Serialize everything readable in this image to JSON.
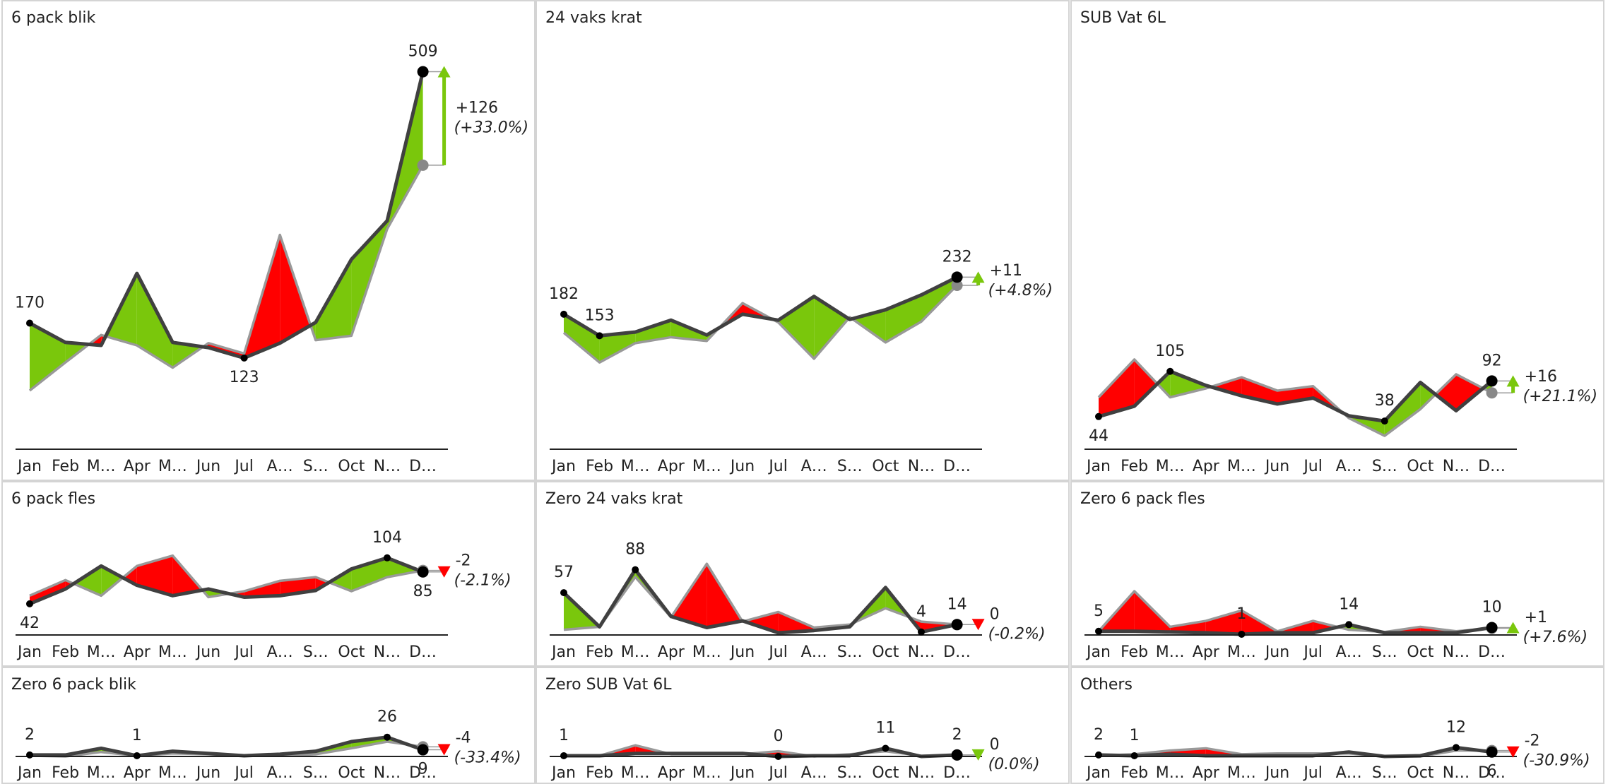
{
  "chart_data": [
    {
      "type": "variance-line",
      "title": "6 pack blik",
      "categories": [
        "Jan",
        "Feb",
        "M…",
        "Apr",
        "M…",
        "Jun",
        "Jul",
        "A…",
        "S…",
        "Oct",
        "N…",
        "D…"
      ],
      "series": [
        {
          "color": "#404040",
          "values": [
            170,
            144,
            140,
            237,
            144,
            137,
            123,
            143,
            171,
            256,
            308,
            509
          ],
          "value_labels": [
            "170",
            null,
            null,
            null,
            null,
            null,
            "123",
            null,
            null,
            null,
            null,
            "509"
          ]
        },
        {
          "color": "#999999",
          "values": [
            79,
            117,
            154,
            140,
            110,
            143,
            129,
            289,
            147,
            153,
            297,
            383
          ]
        }
      ],
      "delta": {
        "value": 126,
        "label": "+126"
      },
      "delta_pct": {
        "value": 33.0,
        "label": "(+33.0%)"
      }
    },
    {
      "type": "variance-line",
      "title": "24 vaks krat",
      "categories": [
        "Jan",
        "Feb",
        "M…",
        "Apr",
        "M…",
        "Jun",
        "Jul",
        "A…",
        "S…",
        "Oct",
        "N…",
        "D…"
      ],
      "series": [
        {
          "color": "#404040",
          "values": [
            182,
            153,
            158,
            174,
            154,
            182,
            174,
            206,
            175,
            188,
            208,
            232
          ],
          "value_labels": [
            "182",
            "153",
            null,
            null,
            null,
            null,
            null,
            null,
            null,
            null,
            null,
            "232"
          ]
        },
        {
          "color": "#999999",
          "values": [
            157,
            117,
            143,
            151,
            146,
            197,
            171,
            122,
            178,
            144,
            172,
            221
          ]
        }
      ],
      "delta": {
        "value": 11,
        "label": "+11"
      },
      "delta_pct": {
        "value": 4.8,
        "label": "(+4.8%)"
      }
    },
    {
      "type": "variance-line",
      "title": "SUB Vat 6L",
      "categories": [
        "Jan",
        "Feb",
        "M…",
        "Apr",
        "M…",
        "Jun",
        "Jul",
        "A…",
        "S…",
        "Oct",
        "N…",
        "D…"
      ],
      "series": [
        {
          "color": "#404040",
          "values": [
            44,
            58,
            105,
            86,
            72,
            61,
            69,
            45,
            38,
            90,
            52,
            92
          ],
          "value_labels": [
            "44",
            null,
            "105",
            null,
            null,
            null,
            null,
            null,
            "38",
            null,
            null,
            "92"
          ]
        },
        {
          "color": "#999999",
          "values": [
            70,
            121,
            70,
            82,
            97,
            79,
            85,
            42,
            18,
            54,
            101,
            76
          ]
        }
      ],
      "delta": {
        "value": 16,
        "label": "+16"
      },
      "delta_pct": {
        "value": 21.1,
        "label": "(+21.1%)"
      }
    },
    {
      "type": "variance-line",
      "title": "6 pack fles",
      "categories": [
        "Jan",
        "Feb",
        "M…",
        "Apr",
        "M…",
        "Jun",
        "Jul",
        "A…",
        "S…",
        "Oct",
        "N…",
        "D…"
      ],
      "series": [
        {
          "color": "#404040",
          "values": [
            42,
            62,
            93,
            67,
            53,
            62,
            51,
            53,
            60,
            89,
            104,
            85
          ],
          "value_labels": [
            "42",
            null,
            null,
            null,
            null,
            null,
            null,
            null,
            null,
            null,
            "104",
            "85"
          ]
        },
        {
          "color": "#999999",
          "values": [
            53,
            74,
            53,
            93,
            107,
            51,
            59,
            73,
            78,
            59,
            78,
            87
          ]
        }
      ],
      "delta": {
        "value": -2,
        "label": "-2"
      },
      "delta_pct": {
        "value": -2.1,
        "label": "(-2.1%)"
      }
    },
    {
      "type": "variance-line",
      "title": "Zero 24 vaks krat",
      "categories": [
        "Jan",
        "Feb",
        "M…",
        "Apr",
        "M…",
        "Jun",
        "Jul",
        "A…",
        "S…",
        "Oct",
        "N…",
        "D…"
      ],
      "series": [
        {
          "color": "#404040",
          "values": [
            57,
            11,
            88,
            25,
            10,
            19,
            3,
            6,
            11,
            64,
            4,
            14
          ],
          "value_labels": [
            "57",
            null,
            "88",
            null,
            null,
            null,
            null,
            null,
            null,
            null,
            "4",
            "14"
          ]
        },
        {
          "color": "#999999",
          "values": [
            7,
            11,
            78,
            24,
            96,
            18,
            31,
            10,
            14,
            36,
            18,
            14
          ]
        }
      ],
      "delta": {
        "value": 0,
        "label": "0"
      },
      "delta_pct": {
        "value": -0.2,
        "label": "(-0.2%)"
      }
    },
    {
      "type": "variance-line",
      "title": "Zero 6 pack fles",
      "categories": [
        "Jan",
        "Feb",
        "M…",
        "Apr",
        "M…",
        "Jun",
        "Jul",
        "A…",
        "S…",
        "Oct",
        "N…",
        "D…"
      ],
      "series": [
        {
          "color": "#404040",
          "values": [
            5,
            5,
            4,
            3,
            1,
            3,
            3,
            14,
            3,
            3,
            3,
            10
          ],
          "value_labels": [
            "5",
            null,
            null,
            null,
            "1",
            null,
            null,
            "14",
            null,
            null,
            null,
            "10"
          ]
        },
        {
          "color": "#999999",
          "values": [
            5,
            59,
            11,
            19,
            33,
            5,
            19,
            7,
            4,
            11,
            5,
            9
          ]
        }
      ],
      "delta": {
        "value": 1,
        "label": "+1"
      },
      "delta_pct": {
        "value": 7.6,
        "label": "(+7.6%)"
      }
    },
    {
      "type": "variance-line",
      "title": "Zero 6 pack blik",
      "categories": [
        "Jan",
        "Feb",
        "M…",
        "Apr",
        "M…",
        "Jun",
        "Jul",
        "A…",
        "S…",
        "Oct",
        "N…",
        "D…"
      ],
      "series": [
        {
          "color": "#404040",
          "values": [
            2,
            2,
            11,
            1,
            7,
            4,
            1,
            3,
            7,
            20,
            26,
            9
          ],
          "value_labels": [
            "2",
            null,
            null,
            "1",
            null,
            null,
            null,
            null,
            null,
            null,
            "26",
            "9"
          ]
        },
        {
          "color": "#999999",
          "values": [
            1,
            0,
            6,
            1,
            4,
            3,
            1,
            1,
            3,
            11,
            20,
            13
          ]
        }
      ],
      "delta": {
        "value": -4,
        "label": "-4"
      },
      "delta_pct": {
        "value": -33.4,
        "label": "(-33.4%)"
      }
    },
    {
      "type": "variance-line",
      "title": "Zero SUB Vat 6L",
      "categories": [
        "Jan",
        "Feb",
        "M…",
        "Apr",
        "M…",
        "Jun",
        "Jul",
        "A…",
        "S…",
        "Oct",
        "N…",
        "D…"
      ],
      "series": [
        {
          "color": "#404040",
          "values": [
            1,
            1,
            4,
            4,
            4,
            4,
            0,
            1,
            1,
            11,
            0,
            2
          ],
          "value_labels": [
            "1",
            null,
            null,
            null,
            null,
            null,
            "0",
            null,
            null,
            "11",
            null,
            "2"
          ]
        },
        {
          "color": "#999999",
          "values": [
            1,
            1,
            15,
            3,
            3,
            3,
            7,
            0,
            3,
            7,
            1,
            2
          ]
        }
      ],
      "delta": {
        "value": 0,
        "label": "0"
      },
      "delta_pct": {
        "value": 0.0,
        "label": "(0.0%)"
      }
    },
    {
      "type": "variance-line",
      "title": "Others",
      "categories": [
        "Jan",
        "Feb",
        "M…",
        "Apr",
        "M…",
        "Jun",
        "Jul",
        "A…",
        "S…",
        "Oct",
        "N…",
        "D…"
      ],
      "series": [
        {
          "color": "#404040",
          "values": [
            2,
            1,
            3,
            1,
            1,
            1,
            1,
            6,
            0,
            1,
            12,
            6
          ],
          "value_labels": [
            "2",
            "1",
            null,
            null,
            null,
            null,
            null,
            null,
            null,
            null,
            "12",
            "6"
          ]
        },
        {
          "color": "#999999",
          "values": [
            1,
            3,
            8,
            11,
            3,
            4,
            4,
            4,
            0,
            0,
            8,
            8
          ]
        }
      ],
      "delta": {
        "value": -2,
        "label": "-2"
      },
      "delta_pct": {
        "value": -30.9,
        "label": "(-30.9%)"
      }
    }
  ]
}
